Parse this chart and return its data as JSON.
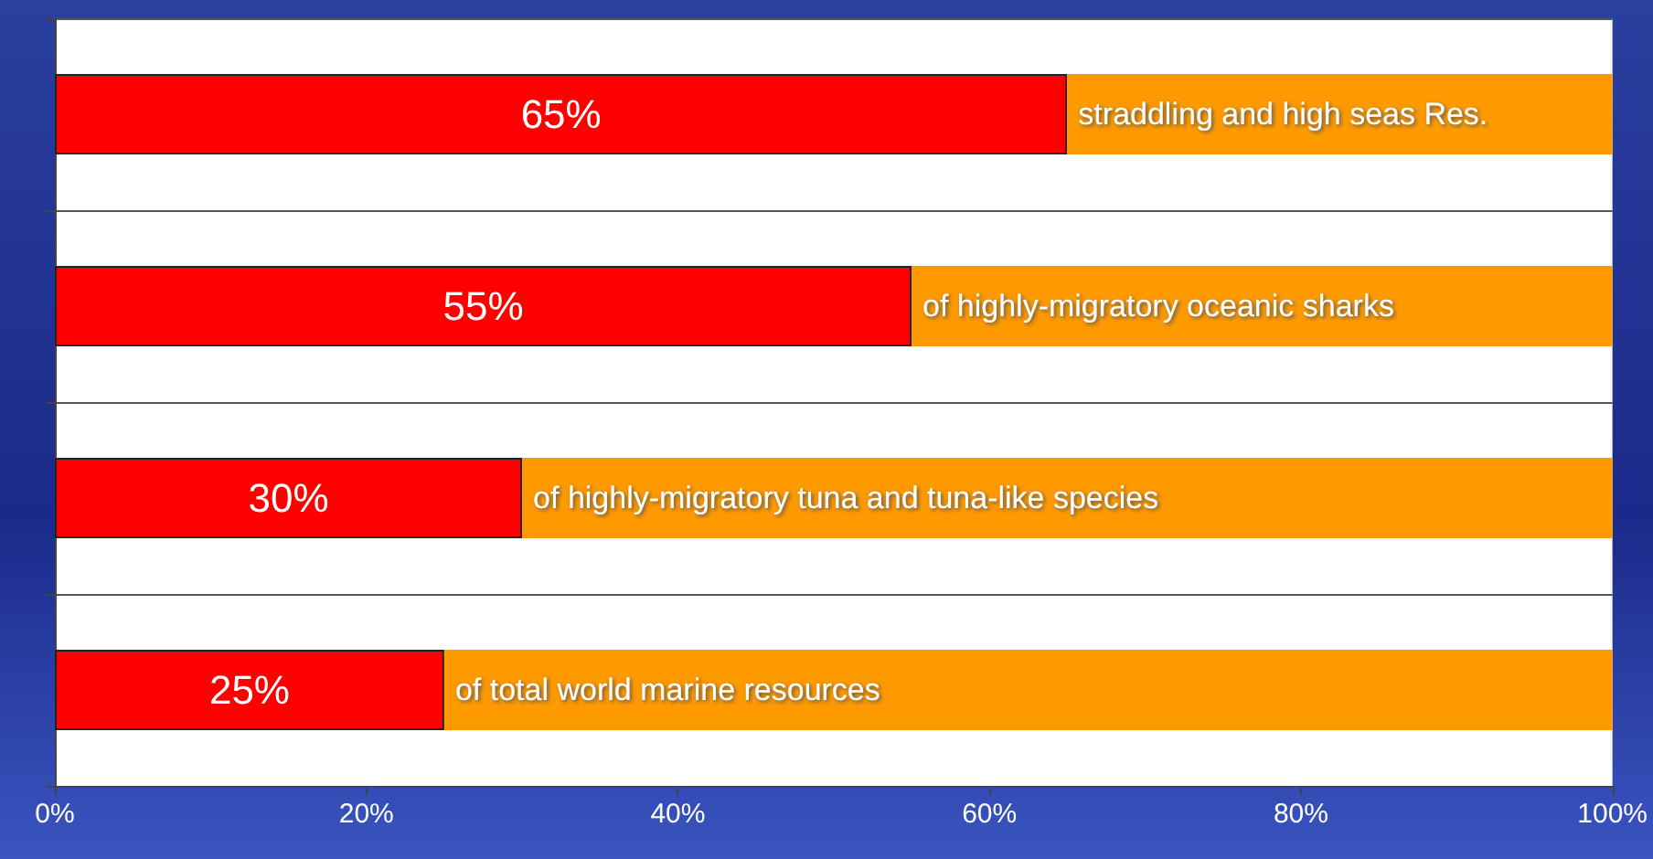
{
  "chart_data": {
    "type": "bar",
    "orientation": "horizontal",
    "stacked": true,
    "categories": [
      "straddling and high seas Res.",
      "of highly-migratory oceanic sharks",
      "of highly-migratory tuna and tuna-like species",
      "of total world marine resources"
    ],
    "series": [
      {
        "color": "#ff0000",
        "values": [
          65,
          55,
          30,
          25
        ],
        "value_labels": [
          "65%",
          "55%",
          "30%",
          "25%"
        ]
      },
      {
        "color": "#ff9900",
        "values": [
          35,
          45,
          70,
          75
        ]
      }
    ],
    "xlim": [
      0,
      100
    ],
    "xticks": [
      {
        "value": 0,
        "label": "0%"
      },
      {
        "value": 20,
        "label": "20%"
      },
      {
        "value": 40,
        "label": "40%"
      },
      {
        "value": 60,
        "label": "60%"
      },
      {
        "value": 80,
        "label": "80%"
      },
      {
        "value": 100,
        "label": "100%"
      }
    ],
    "tick_labels": "x",
    "grid": "y"
  }
}
